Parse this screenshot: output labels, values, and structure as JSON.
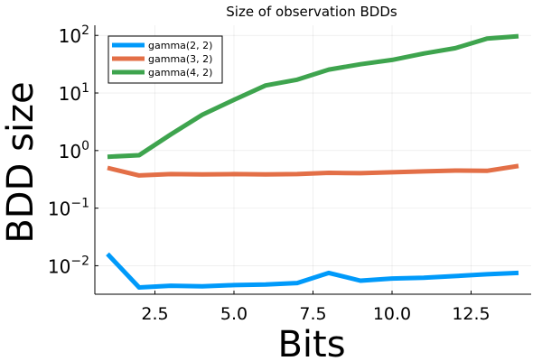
{
  "chart_data": {
    "type": "line",
    "title": "Size of observation BDDs",
    "xlabel": "Bits",
    "ylabel": "BDD size",
    "x": [
      1,
      2,
      3,
      4,
      5,
      6,
      7,
      8,
      9,
      10,
      11,
      12,
      13,
      14
    ],
    "xlim": [
      0.6,
      14.4
    ],
    "ylim": [
      0.0032,
      150
    ],
    "yscale": "log",
    "xticks": [
      {
        "value": 2.5,
        "label": "2.5"
      },
      {
        "value": 5.0,
        "label": "5.0"
      },
      {
        "value": 7.5,
        "label": "7.5"
      },
      {
        "value": 10.0,
        "label": "10.0"
      },
      {
        "value": 12.5,
        "label": "12.5"
      }
    ],
    "yticks": [
      {
        "value": 0.01,
        "base": "10",
        "exp": "−2"
      },
      {
        "value": 0.1,
        "base": "10",
        "exp": "−1"
      },
      {
        "value": 1,
        "base": "10",
        "exp": "0"
      },
      {
        "value": 10,
        "base": "10",
        "exp": "1"
      },
      {
        "value": 100,
        "base": "10",
        "exp": "2"
      }
    ],
    "grid": true,
    "legend_position": "top-left",
    "series": [
      {
        "name": "gamma(2, 2)",
        "color": "#009AFA",
        "values": [
          0.016,
          0.0042,
          0.0045,
          0.0044,
          0.0046,
          0.0047,
          0.005,
          0.0075,
          0.0055,
          0.006,
          0.0062,
          0.0066,
          0.0071,
          0.0075
        ]
      },
      {
        "name": "gamma(3, 2)",
        "color": "#E36F47",
        "values": [
          0.5,
          0.37,
          0.39,
          0.385,
          0.39,
          0.385,
          0.39,
          0.41,
          0.405,
          0.42,
          0.435,
          0.45,
          0.445,
          0.54
        ]
      },
      {
        "name": "gamma(4, 2)",
        "color": "#3EA44E",
        "values": [
          0.78,
          0.83,
          1.9,
          4.2,
          7.6,
          13.5,
          17,
          25.5,
          31.5,
          37.5,
          48.5,
          60,
          88,
          97
        ]
      }
    ]
  }
}
